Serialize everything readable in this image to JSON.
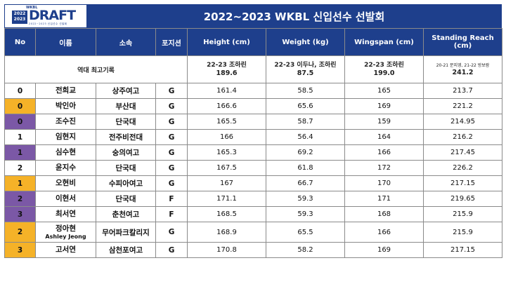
{
  "logo": {
    "wkbl": "WKBL",
    "years": "2022 2023",
    "draft": "DRAFT",
    "tag": "2022~2023 신입선수 선발회"
  },
  "title": "2022~2023 WKBL 신입선수 선발회",
  "headers": {
    "no": "No",
    "name": "이름",
    "team": "소속",
    "position": "포지션",
    "height": "Height (cm)",
    "weight": "Weight (kg)",
    "wingspan": "Wingspan (cm)",
    "reach": "Standing Reach (cm)"
  },
  "record": {
    "label": "역대 최고기록",
    "height_holder": "22-23 조하린",
    "height_value": "189.6",
    "weight_holder": "22-23 이두나, 조하린",
    "weight_value": "87.5",
    "wingspan_holder": "22-23 조하린",
    "wingspan_value": "199.0",
    "reach_holder": "20-21 문지영, 21-22 방보람",
    "reach_value": "241.2"
  },
  "colors": {
    "header_blue": "#1e3f8c",
    "gold": "#f5b228",
    "purple": "#7b58a6",
    "white": "#ffffff"
  },
  "players": [
    {
      "no": "0",
      "color": "white",
      "name": "전희교",
      "name_en": "",
      "team": "상주여고",
      "pos": "G",
      "height": "161.4",
      "weight": "58.5",
      "wingspan": "165",
      "reach": "213.7"
    },
    {
      "no": "0",
      "color": "gold",
      "name": "박인아",
      "name_en": "",
      "team": "부산대",
      "pos": "G",
      "height": "166.6",
      "weight": "65.6",
      "wingspan": "169",
      "reach": "221.2"
    },
    {
      "no": "0",
      "color": "purple",
      "name": "조수진",
      "name_en": "",
      "team": "단국대",
      "pos": "G",
      "height": "165.5",
      "weight": "58.7",
      "wingspan": "159",
      "reach": "214.95"
    },
    {
      "no": "1",
      "color": "white",
      "name": "임현지",
      "name_en": "",
      "team": "전주비전대",
      "pos": "G",
      "height": "166",
      "weight": "56.4",
      "wingspan": "164",
      "reach": "216.2"
    },
    {
      "no": "1",
      "color": "purple",
      "name": "심수현",
      "name_en": "",
      "team": "숭의여고",
      "pos": "G",
      "height": "165.3",
      "weight": "69.2",
      "wingspan": "166",
      "reach": "217.45"
    },
    {
      "no": "2",
      "color": "white",
      "name": "윤지수",
      "name_en": "",
      "team": "단국대",
      "pos": "G",
      "height": "167.5",
      "weight": "61.8",
      "wingspan": "172",
      "reach": "226.2"
    },
    {
      "no": "1",
      "color": "gold",
      "name": "오현비",
      "name_en": "",
      "team": "수피아여고",
      "pos": "G",
      "height": "167",
      "weight": "66.7",
      "wingspan": "170",
      "reach": "217.15"
    },
    {
      "no": "2",
      "color": "purple",
      "name": "이현서",
      "name_en": "",
      "team": "단국대",
      "pos": "F",
      "height": "171.1",
      "weight": "59.3",
      "wingspan": "171",
      "reach": "219.65"
    },
    {
      "no": "3",
      "color": "purple",
      "name": "최서연",
      "name_en": "",
      "team": "춘천여고",
      "pos": "F",
      "height": "168.5",
      "weight": "59.3",
      "wingspan": "168",
      "reach": "215.9"
    },
    {
      "no": "2",
      "color": "gold",
      "name": "정아현",
      "name_en": "Ashley Jeong",
      "team": "무어파크칼리지",
      "pos": "G",
      "height": "168.9",
      "weight": "65.5",
      "wingspan": "166",
      "reach": "215.9"
    },
    {
      "no": "3",
      "color": "gold",
      "name": "고서연",
      "name_en": "",
      "team": "삼천포여고",
      "pos": "G",
      "height": "170.8",
      "weight": "58.2",
      "wingspan": "169",
      "reach": "217.15"
    }
  ]
}
